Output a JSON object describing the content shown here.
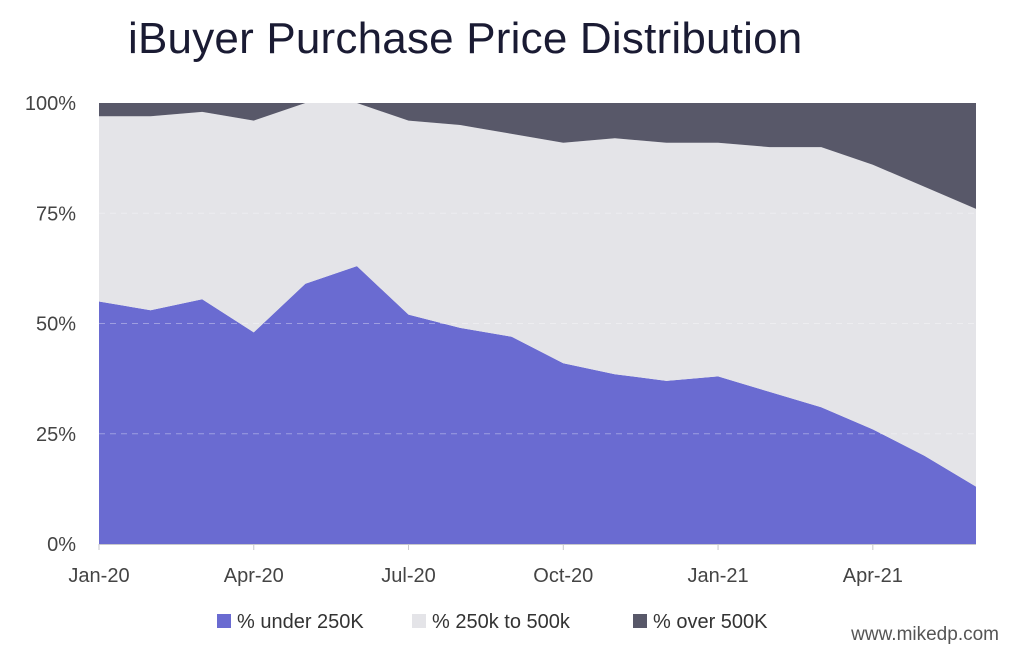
{
  "chart_data": {
    "type": "area",
    "stacked": true,
    "normalized": true,
    "title": "iBuyer Purchase Price Distribution",
    "xlabel": "",
    "ylabel": "",
    "x": [
      "Jan-20",
      "Feb-20",
      "Mar-20",
      "Apr-20",
      "May-20",
      "Jun-20",
      "Jul-20",
      "Aug-20",
      "Sep-20",
      "Oct-20",
      "Nov-20",
      "Dec-20",
      "Jan-21",
      "Feb-21",
      "Mar-21",
      "Apr-21",
      "May-21",
      "Jun-21"
    ],
    "x_tick_labels": [
      "Jan-20",
      "Apr-20",
      "Jul-20",
      "Oct-20",
      "Jan-21",
      "Apr-21"
    ],
    "x_tick_indices": [
      0,
      3,
      6,
      9,
      12,
      15
    ],
    "y_tick_values": [
      0,
      25,
      50,
      75,
      100
    ],
    "y_tick_labels": [
      "0%",
      "25%",
      "50%",
      "75%",
      "100%"
    ],
    "ylim": [
      0,
      100
    ],
    "grid": true,
    "legend_position": "bottom",
    "series": [
      {
        "name": "% under 250K",
        "color": "#6a6bd1",
        "values": [
          55,
          53,
          55.5,
          48,
          59,
          63,
          52,
          49,
          47,
          41,
          38.5,
          37,
          38,
          34.5,
          31,
          26,
          20,
          13
        ]
      },
      {
        "name": "% 250k to 500k",
        "color": "#e4e4e8",
        "values": [
          42,
          44,
          42.5,
          48,
          41,
          37,
          44,
          46,
          46,
          50,
          53.5,
          54,
          53,
          55.5,
          59,
          60,
          61,
          63
        ]
      },
      {
        "name": "% over 500K",
        "color": "#585869",
        "values": [
          3,
          3,
          2,
          4,
          0,
          0,
          4,
          5,
          7,
          9,
          8,
          9,
          9,
          10,
          10,
          14,
          19,
          24
        ]
      }
    ]
  },
  "watermark": "www.mikedp.com"
}
